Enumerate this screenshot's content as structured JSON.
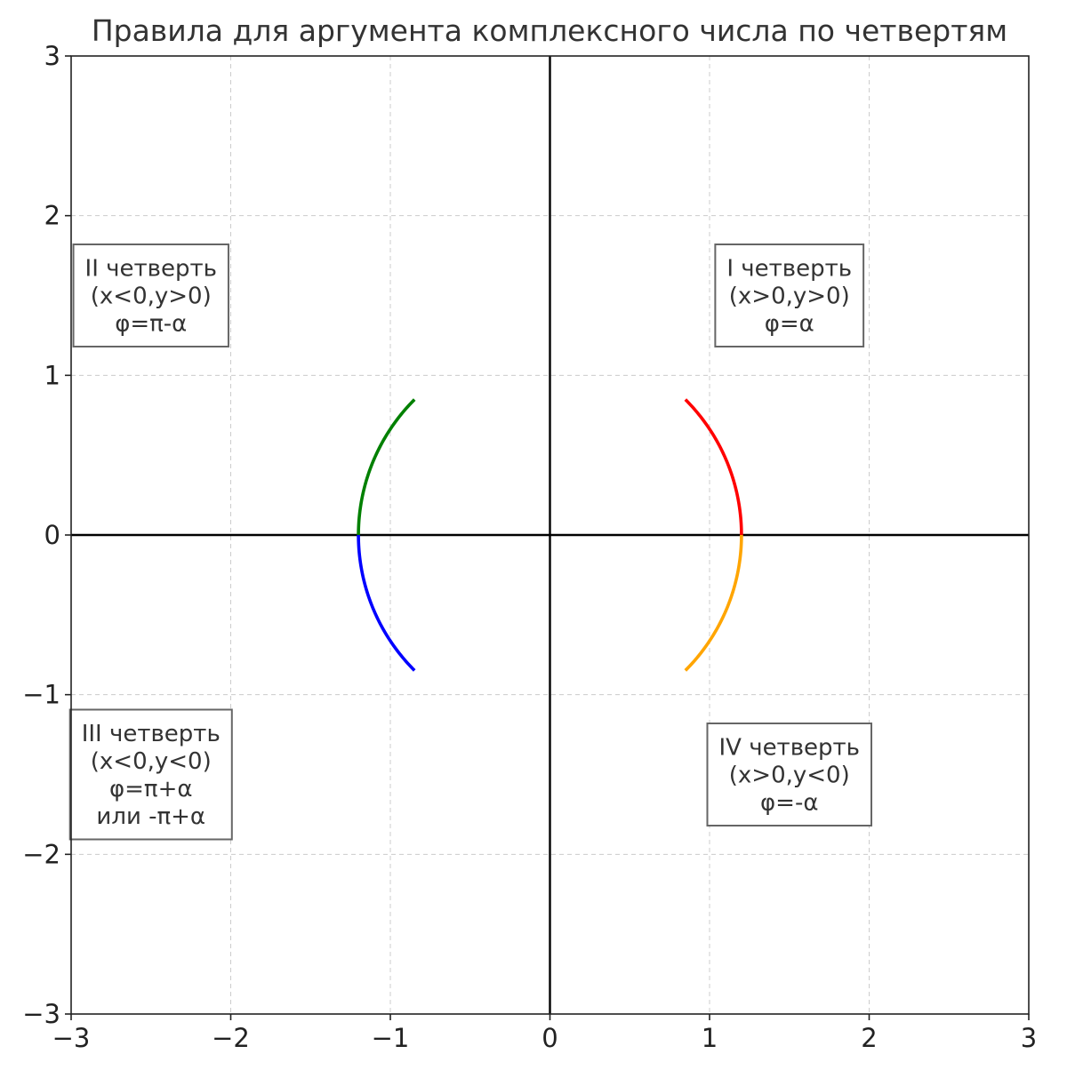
{
  "chart_data": {
    "type": "line",
    "title": "Правила для аргумента комплексного числа по четвертям",
    "xlabel": "",
    "ylabel": "",
    "xlim": [
      -3,
      3
    ],
    "ylim": [
      -3,
      3
    ],
    "x_ticks": [
      -3,
      -2,
      -1,
      0,
      1,
      2,
      3
    ],
    "y_ticks": [
      -3,
      -2,
      -1,
      0,
      1,
      2,
      3
    ],
    "x_tick_labels": [
      "−3",
      "−2",
      "−1",
      "0",
      "1",
      "2",
      "3"
    ],
    "y_tick_labels": [
      "−3",
      "−2",
      "−1",
      "0",
      "1",
      "2",
      "3"
    ],
    "grid": true,
    "grid_style": "dashed",
    "axes_lines": [
      {
        "orientation": "horizontal",
        "at": 0,
        "color": "#000000"
      },
      {
        "orientation": "vertical",
        "at": 0,
        "color": "#000000"
      }
    ],
    "series": [
      {
        "quadrant": "I",
        "color": "#ff0000",
        "curve": "arc",
        "radius": 1.2,
        "theta_start_deg": 0,
        "theta_end_deg": 45
      },
      {
        "quadrant": "II",
        "color": "#008000",
        "curve": "arc",
        "radius": 1.2,
        "theta_start_deg": 135,
        "theta_end_deg": 180
      },
      {
        "quadrant": "III",
        "color": "#0000ff",
        "curve": "arc",
        "radius": 1.2,
        "theta_start_deg": 180,
        "theta_end_deg": 225
      },
      {
        "quadrant": "IV",
        "color": "#ffa500",
        "curve": "arc",
        "radius": 1.2,
        "theta_start_deg": 315,
        "theta_end_deg": 360
      }
    ],
    "annotations": [
      {
        "name": "quadrant-1",
        "x": 1.5,
        "y": 1.5,
        "lines": [
          "I четверть",
          "(x>0,y>0)",
          "φ=α"
        ]
      },
      {
        "name": "quadrant-2",
        "x": -2.5,
        "y": 1.5,
        "lines": [
          "II четверть",
          "(x<0,y>0)",
          "φ=π-α"
        ]
      },
      {
        "name": "quadrant-3",
        "x": -2.5,
        "y": -1.5,
        "lines": [
          "III четверть",
          "(x<0,y<0)",
          "φ=π+α",
          "или -π+α"
        ]
      },
      {
        "name": "quadrant-4",
        "x": 1.5,
        "y": -1.5,
        "lines": [
          "IV четверть",
          "(x>0,y<0)",
          "φ=-α"
        ]
      }
    ]
  }
}
